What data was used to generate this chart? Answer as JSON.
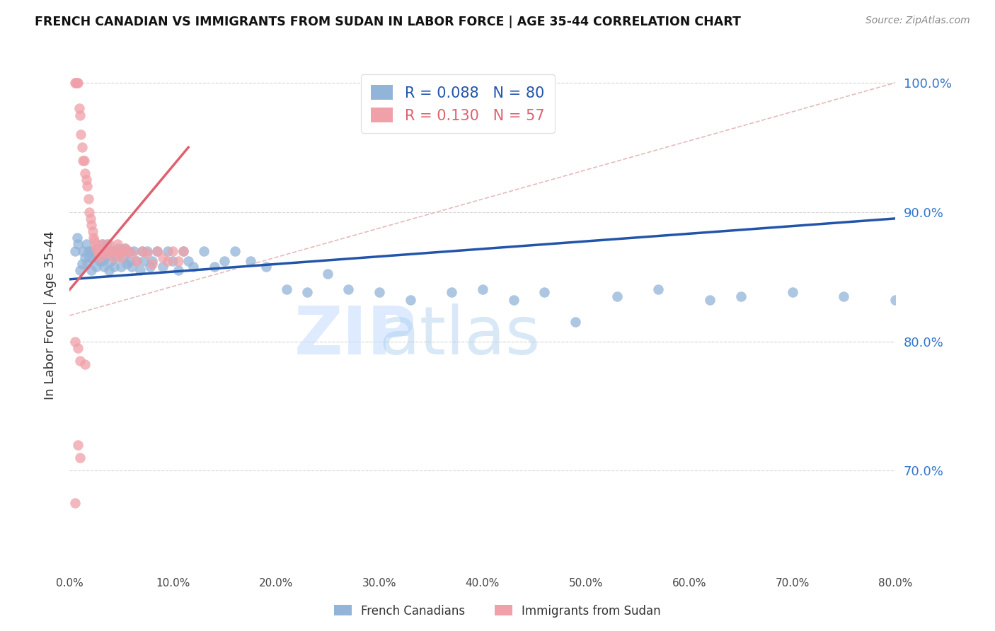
{
  "title": "FRENCH CANADIAN VS IMMIGRANTS FROM SUDAN IN LABOR FORCE | AGE 35-44 CORRELATION CHART",
  "source": "Source: ZipAtlas.com",
  "ylabel": "In Labor Force | Age 35-44",
  "xlabel": "",
  "watermark_zip": "ZIP",
  "watermark_atlas": "atlas",
  "blue_label": "French Canadians",
  "pink_label": "Immigrants from Sudan",
  "blue_R": 0.088,
  "blue_N": 80,
  "pink_R": 0.13,
  "pink_N": 57,
  "blue_color": "#92B4D8",
  "pink_color": "#F0A0A8",
  "blue_line_color": "#2255AA",
  "pink_line_color": "#E06070",
  "ref_line_color": "#DDAAAA",
  "xlim": [
    0.0,
    0.8
  ],
  "ylim": [
    0.62,
    1.02
  ],
  "yticks": [
    0.7,
    0.8,
    0.9,
    1.0
  ],
  "xticks": [
    0.0,
    0.1,
    0.2,
    0.3,
    0.4,
    0.5,
    0.6,
    0.7,
    0.8
  ],
  "blue_x": [
    0.005,
    0.007,
    0.008,
    0.01,
    0.012,
    0.013,
    0.015,
    0.016,
    0.017,
    0.018,
    0.019,
    0.02,
    0.021,
    0.022,
    0.023,
    0.025,
    0.026,
    0.027,
    0.028,
    0.029,
    0.03,
    0.031,
    0.032,
    0.033,
    0.034,
    0.035,
    0.036,
    0.038,
    0.04,
    0.042,
    0.043,
    0.045,
    0.047,
    0.05,
    0.052,
    0.053,
    0.055,
    0.057,
    0.058,
    0.06,
    0.062,
    0.065,
    0.068,
    0.07,
    0.072,
    0.075,
    0.078,
    0.08,
    0.085,
    0.09,
    0.095,
    0.1,
    0.105,
    0.11,
    0.115,
    0.12,
    0.13,
    0.14,
    0.15,
    0.16,
    0.175,
    0.19,
    0.21,
    0.23,
    0.25,
    0.27,
    0.3,
    0.33,
    0.37,
    0.4,
    0.43,
    0.46,
    0.49,
    0.53,
    0.57,
    0.62,
    0.65,
    0.7,
    0.75,
    0.8
  ],
  "blue_y": [
    0.87,
    0.88,
    0.875,
    0.855,
    0.86,
    0.87,
    0.865,
    0.875,
    0.86,
    0.87,
    0.865,
    0.87,
    0.855,
    0.865,
    0.87,
    0.87,
    0.858,
    0.872,
    0.865,
    0.862,
    0.87,
    0.875,
    0.862,
    0.858,
    0.865,
    0.87,
    0.875,
    0.855,
    0.862,
    0.87,
    0.858,
    0.865,
    0.872,
    0.858,
    0.865,
    0.872,
    0.86,
    0.87,
    0.862,
    0.858,
    0.87,
    0.862,
    0.855,
    0.87,
    0.862,
    0.87,
    0.858,
    0.862,
    0.87,
    0.858,
    0.87,
    0.862,
    0.855,
    0.87,
    0.862,
    0.858,
    0.87,
    0.858,
    0.862,
    0.87,
    0.862,
    0.858,
    0.84,
    0.838,
    0.852,
    0.84,
    0.838,
    0.832,
    0.838,
    0.84,
    0.832,
    0.838,
    0.815,
    0.835,
    0.84,
    0.832,
    0.835,
    0.838,
    0.835,
    0.832
  ],
  "pink_x": [
    0.005,
    0.006,
    0.007,
    0.008,
    0.009,
    0.01,
    0.011,
    0.012,
    0.013,
    0.014,
    0.015,
    0.016,
    0.017,
    0.018,
    0.019,
    0.02,
    0.021,
    0.022,
    0.023,
    0.024,
    0.025,
    0.026,
    0.027,
    0.028,
    0.029,
    0.03,
    0.032,
    0.034,
    0.036,
    0.038,
    0.04,
    0.042,
    0.044,
    0.046,
    0.048,
    0.05,
    0.052,
    0.054,
    0.056,
    0.06,
    0.065,
    0.07,
    0.075,
    0.08,
    0.085,
    0.09,
    0.095,
    0.1,
    0.105,
    0.11,
    0.005,
    0.008,
    0.01,
    0.015,
    0.005,
    0.008,
    0.01
  ],
  "pink_y": [
    1.0,
    1.0,
    1.0,
    1.0,
    0.98,
    0.975,
    0.96,
    0.95,
    0.94,
    0.94,
    0.93,
    0.925,
    0.92,
    0.91,
    0.9,
    0.895,
    0.89,
    0.885,
    0.88,
    0.878,
    0.875,
    0.872,
    0.87,
    0.868,
    0.865,
    0.87,
    0.875,
    0.87,
    0.868,
    0.875,
    0.87,
    0.865,
    0.87,
    0.875,
    0.87,
    0.865,
    0.87,
    0.872,
    0.87,
    0.868,
    0.862,
    0.87,
    0.868,
    0.86,
    0.87,
    0.865,
    0.862,
    0.87,
    0.862,
    0.87,
    0.8,
    0.795,
    0.785,
    0.782,
    0.675,
    0.72,
    0.71
  ],
  "blue_trend_x": [
    0.0,
    0.8
  ],
  "blue_trend_y": [
    0.848,
    0.895
  ],
  "pink_trend_x": [
    0.0,
    0.115
  ],
  "pink_trend_y": [
    0.84,
    0.95
  ],
  "ref_line_x": [
    0.0,
    0.8
  ],
  "ref_line_y": [
    0.82,
    1.0
  ]
}
